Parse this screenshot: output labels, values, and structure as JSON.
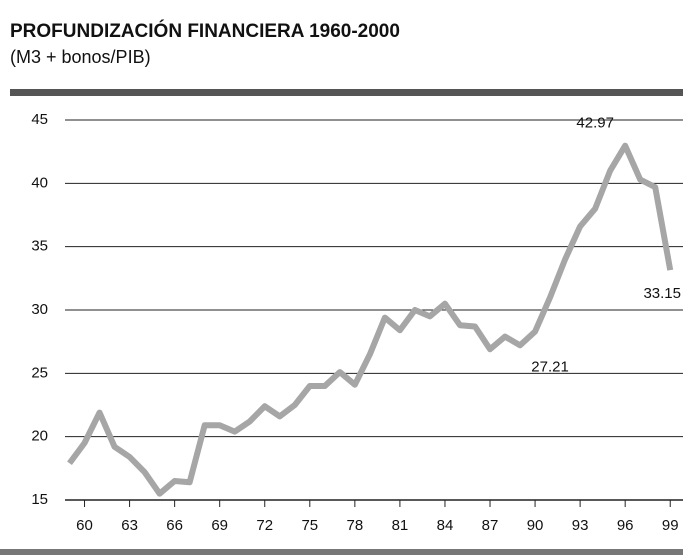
{
  "chart_data": {
    "type": "line",
    "title": "PROFUNDIZACIÓN FINANCIERA 1960-2000",
    "subtitle": "(M3 + bonos/PIB)",
    "x": [
      59,
      60,
      61,
      62,
      63,
      64,
      65,
      66,
      67,
      68,
      69,
      70,
      71,
      72,
      73,
      74,
      75,
      76,
      77,
      78,
      79,
      80,
      81,
      82,
      83,
      84,
      85,
      86,
      87,
      88,
      89,
      90,
      91,
      92,
      93,
      94,
      95,
      96,
      97,
      98,
      99
    ],
    "values": [
      17.9,
      19.5,
      21.9,
      19.2,
      18.4,
      17.2,
      15.5,
      16.5,
      16.4,
      20.9,
      20.9,
      20.4,
      21.2,
      22.4,
      21.6,
      22.5,
      24.0,
      24.0,
      25.1,
      24.1,
      26.5,
      29.4,
      28.4,
      30.0,
      29.5,
      30.5,
      28.8,
      28.7,
      26.9,
      27.9,
      27.21,
      28.3,
      31.0,
      34.0,
      36.6,
      38.0,
      41.0,
      42.97,
      40.3,
      39.7,
      33.15
    ],
    "color": "#a6a6a6",
    "xlim": [
      58.7,
      99.85
    ],
    "xticks": [
      60,
      63,
      66,
      69,
      72,
      75,
      78,
      81,
      84,
      87,
      90,
      93,
      96,
      99
    ],
    "ylim": [
      15,
      45
    ],
    "yticks": [
      15,
      20,
      25,
      30,
      35,
      40,
      45
    ],
    "grid": true
  }
}
